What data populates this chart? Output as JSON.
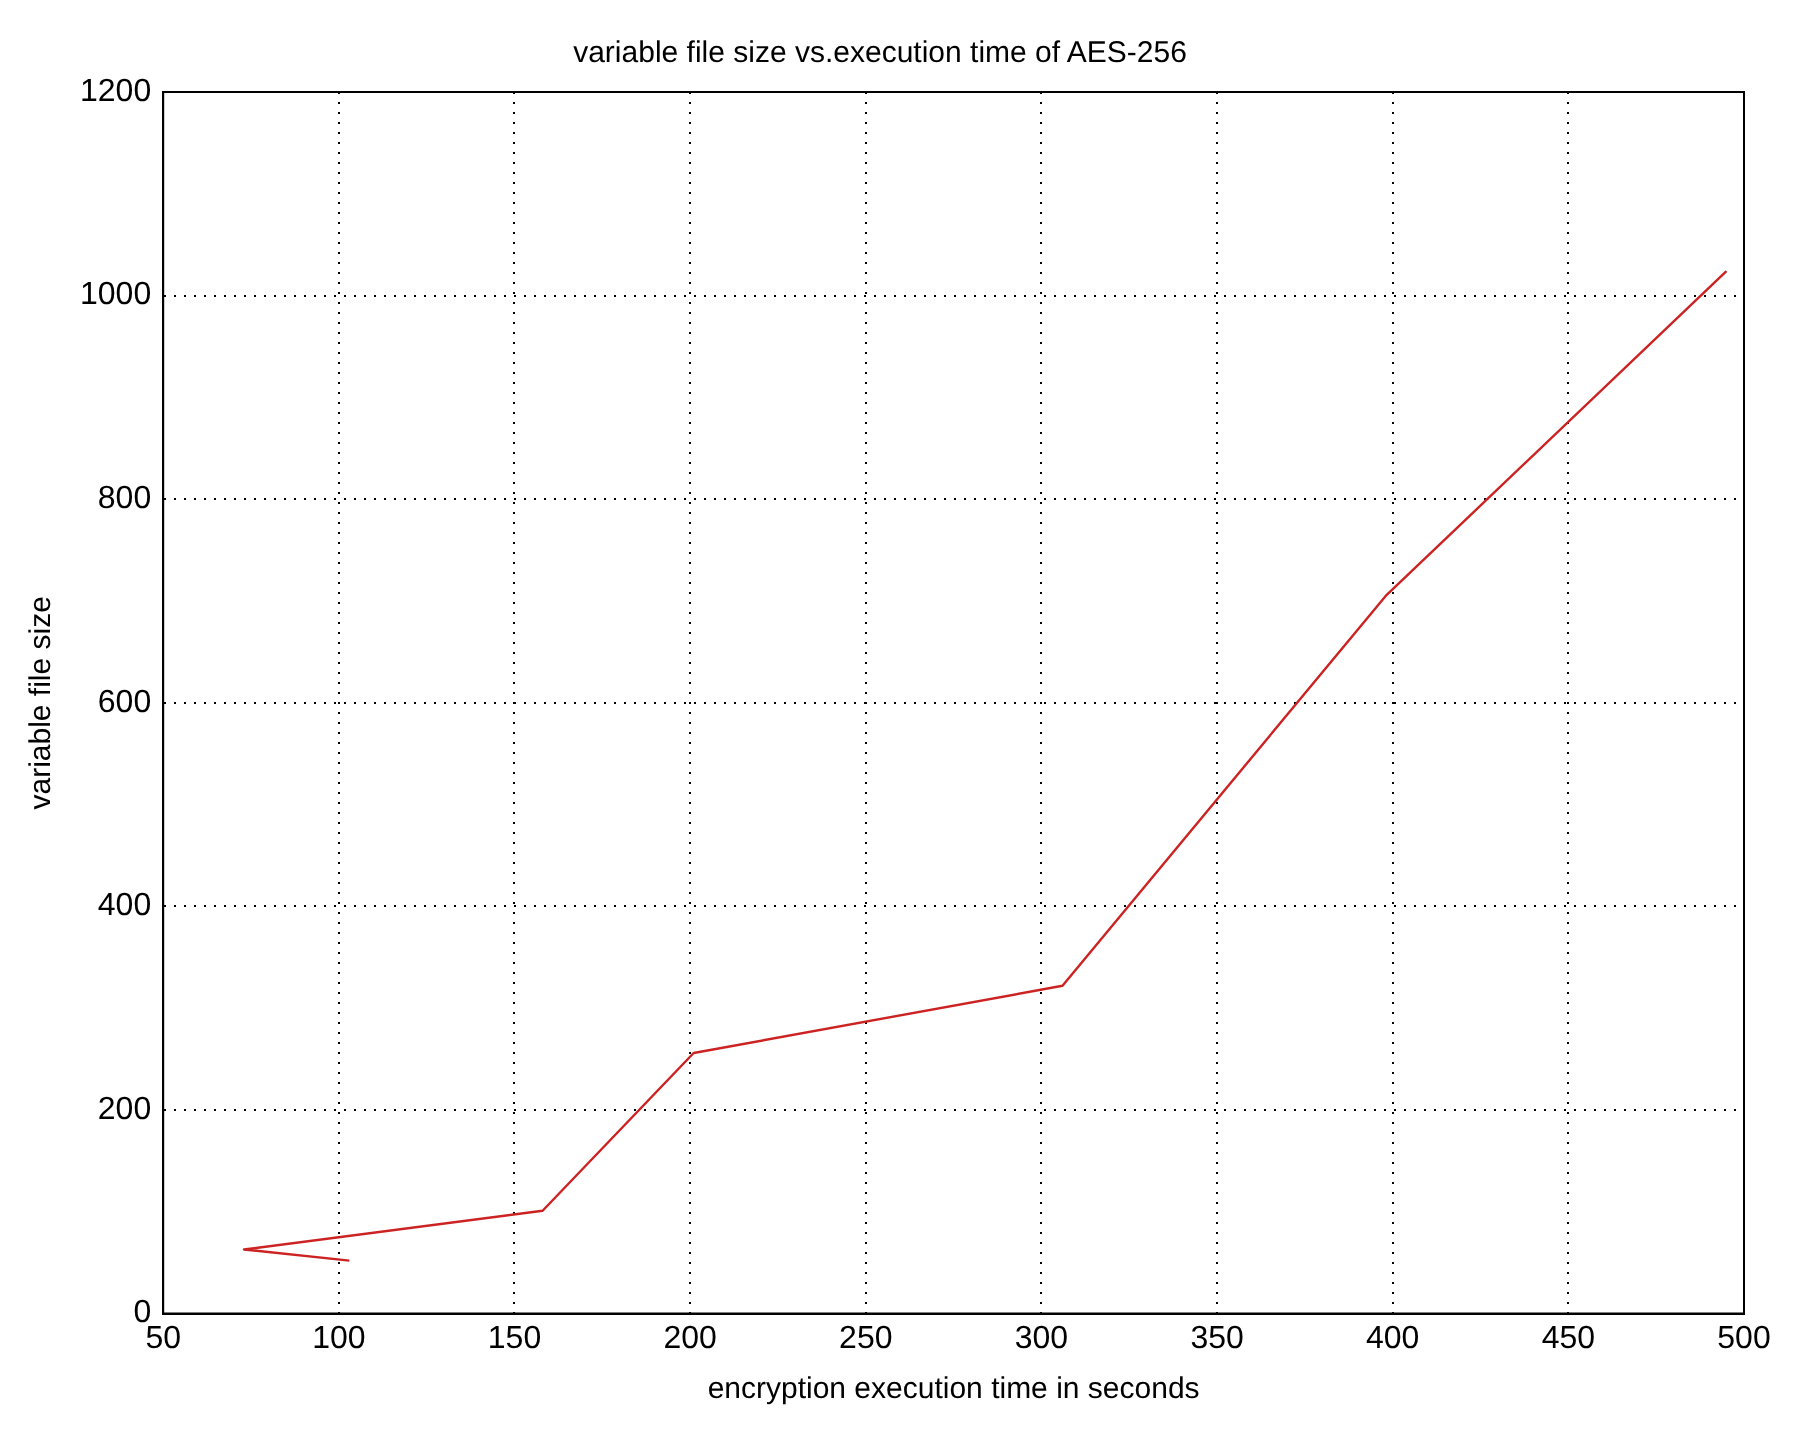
{
  "chart_data": {
    "type": "line",
    "title": "variable file size vs.execution time of AES-256",
    "xlabel": "encryption execution time in seconds",
    "ylabel": "variable file size",
    "series": [
      {
        "color": "#cc2222",
        "x": [
          103,
          73,
          158,
          201,
          306,
          398,
          495
        ],
        "values": [
          52,
          63,
          101,
          256,
          322,
          705,
          1024
        ]
      }
    ],
    "xlim": [
      50,
      500
    ],
    "xticks": [
      50,
      100,
      150,
      200,
      250,
      300,
      350,
      400,
      450,
      500
    ],
    "ylim": [
      0,
      1200
    ],
    "yticks": [
      0,
      200,
      400,
      600,
      800,
      1000,
      1200
    ],
    "grid": true,
    "legend": false,
    "marker": "none",
    "line_style": "solid"
  }
}
